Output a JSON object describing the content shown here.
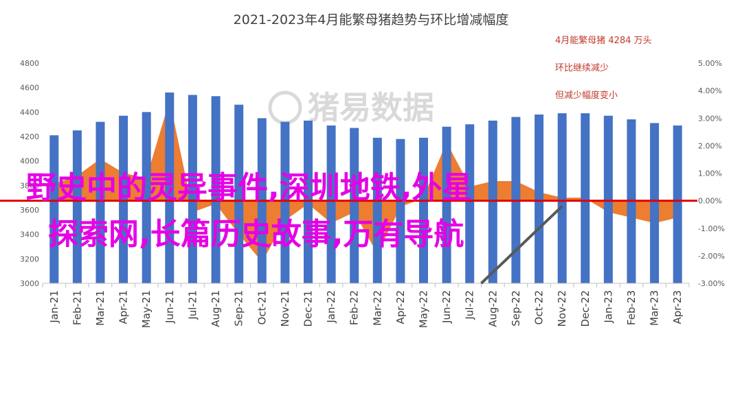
{
  "chart_data": {
    "type": "bar",
    "title": "2021-2023年4月能繁母猪趋势与环比增减幅度",
    "categories": [
      "Jan-21",
      "Feb-21",
      "Mar-21",
      "Apr-21",
      "May-21",
      "Jun-21",
      "Jul-21",
      "Aug-21",
      "Sep-21",
      "Oct-21",
      "Nov-21",
      "Dec-21",
      "Jan-22",
      "Feb-22",
      "Mar-22",
      "Apr-22",
      "May-22",
      "Jun-22",
      "Jul-22",
      "Aug-22",
      "Sep-22",
      "Oct-22",
      "Nov-22",
      "Dec-22",
      "Jan-23",
      "Feb-23",
      "Mar-23",
      "Apr-23"
    ],
    "series": [
      {
        "type": "bar",
        "axis": "left",
        "color": "#4472c4",
        "values": [
          4210,
          4250,
          4320,
          4370,
          4400,
          4560,
          4540,
          4530,
          4460,
          4350,
          4320,
          4330,
          4290,
          4270,
          4190,
          4180,
          4190,
          4280,
          4300,
          4330,
          4360,
          4380,
          4390,
          4390,
          4370,
          4340,
          4310,
          4290
        ]
      },
      {
        "type": "area",
        "axis": "right",
        "color": "#ed7d31",
        "values": [
          0.6,
          0.9,
          1.5,
          1.0,
          0.8,
          3.6,
          -0.4,
          -0.1,
          -1.2,
          -2.2,
          -0.7,
          -0.1,
          -0.8,
          -0.4,
          -1.9,
          -0.2,
          0.1,
          2.1,
          0.5,
          0.7,
          0.7,
          0.3,
          0.1,
          0.1,
          -0.4,
          -0.6,
          -0.8,
          -0.6
        ]
      }
    ],
    "ylim": [
      3000,
      4800
    ],
    "y_ticks": [
      3000,
      3200,
      3400,
      3600,
      3800,
      4000,
      4200,
      4400,
      4600,
      4800
    ],
    "y2lim": [
      -3.0,
      5.0
    ],
    "y2_ticks": [
      "-3.00%",
      "-2.00%",
      "-1.00%",
      "0.00%",
      "1.00%",
      "2.00%",
      "3.00%",
      "4.00%",
      "5.00%"
    ],
    "zero_line_color": "#e00000",
    "grid": false,
    "annotations": [
      "4月能繁母猪 4284 万头",
      "环比继续减少",
      "但减少幅度变小"
    ],
    "watermark": "猪易数据",
    "overlay_text": [
      "野史中的灵异事件,深圳地铁,外星",
      "探索网,长篇历史故事,万有导航"
    ],
    "trend_arrow": {
      "color": "#595959"
    }
  }
}
